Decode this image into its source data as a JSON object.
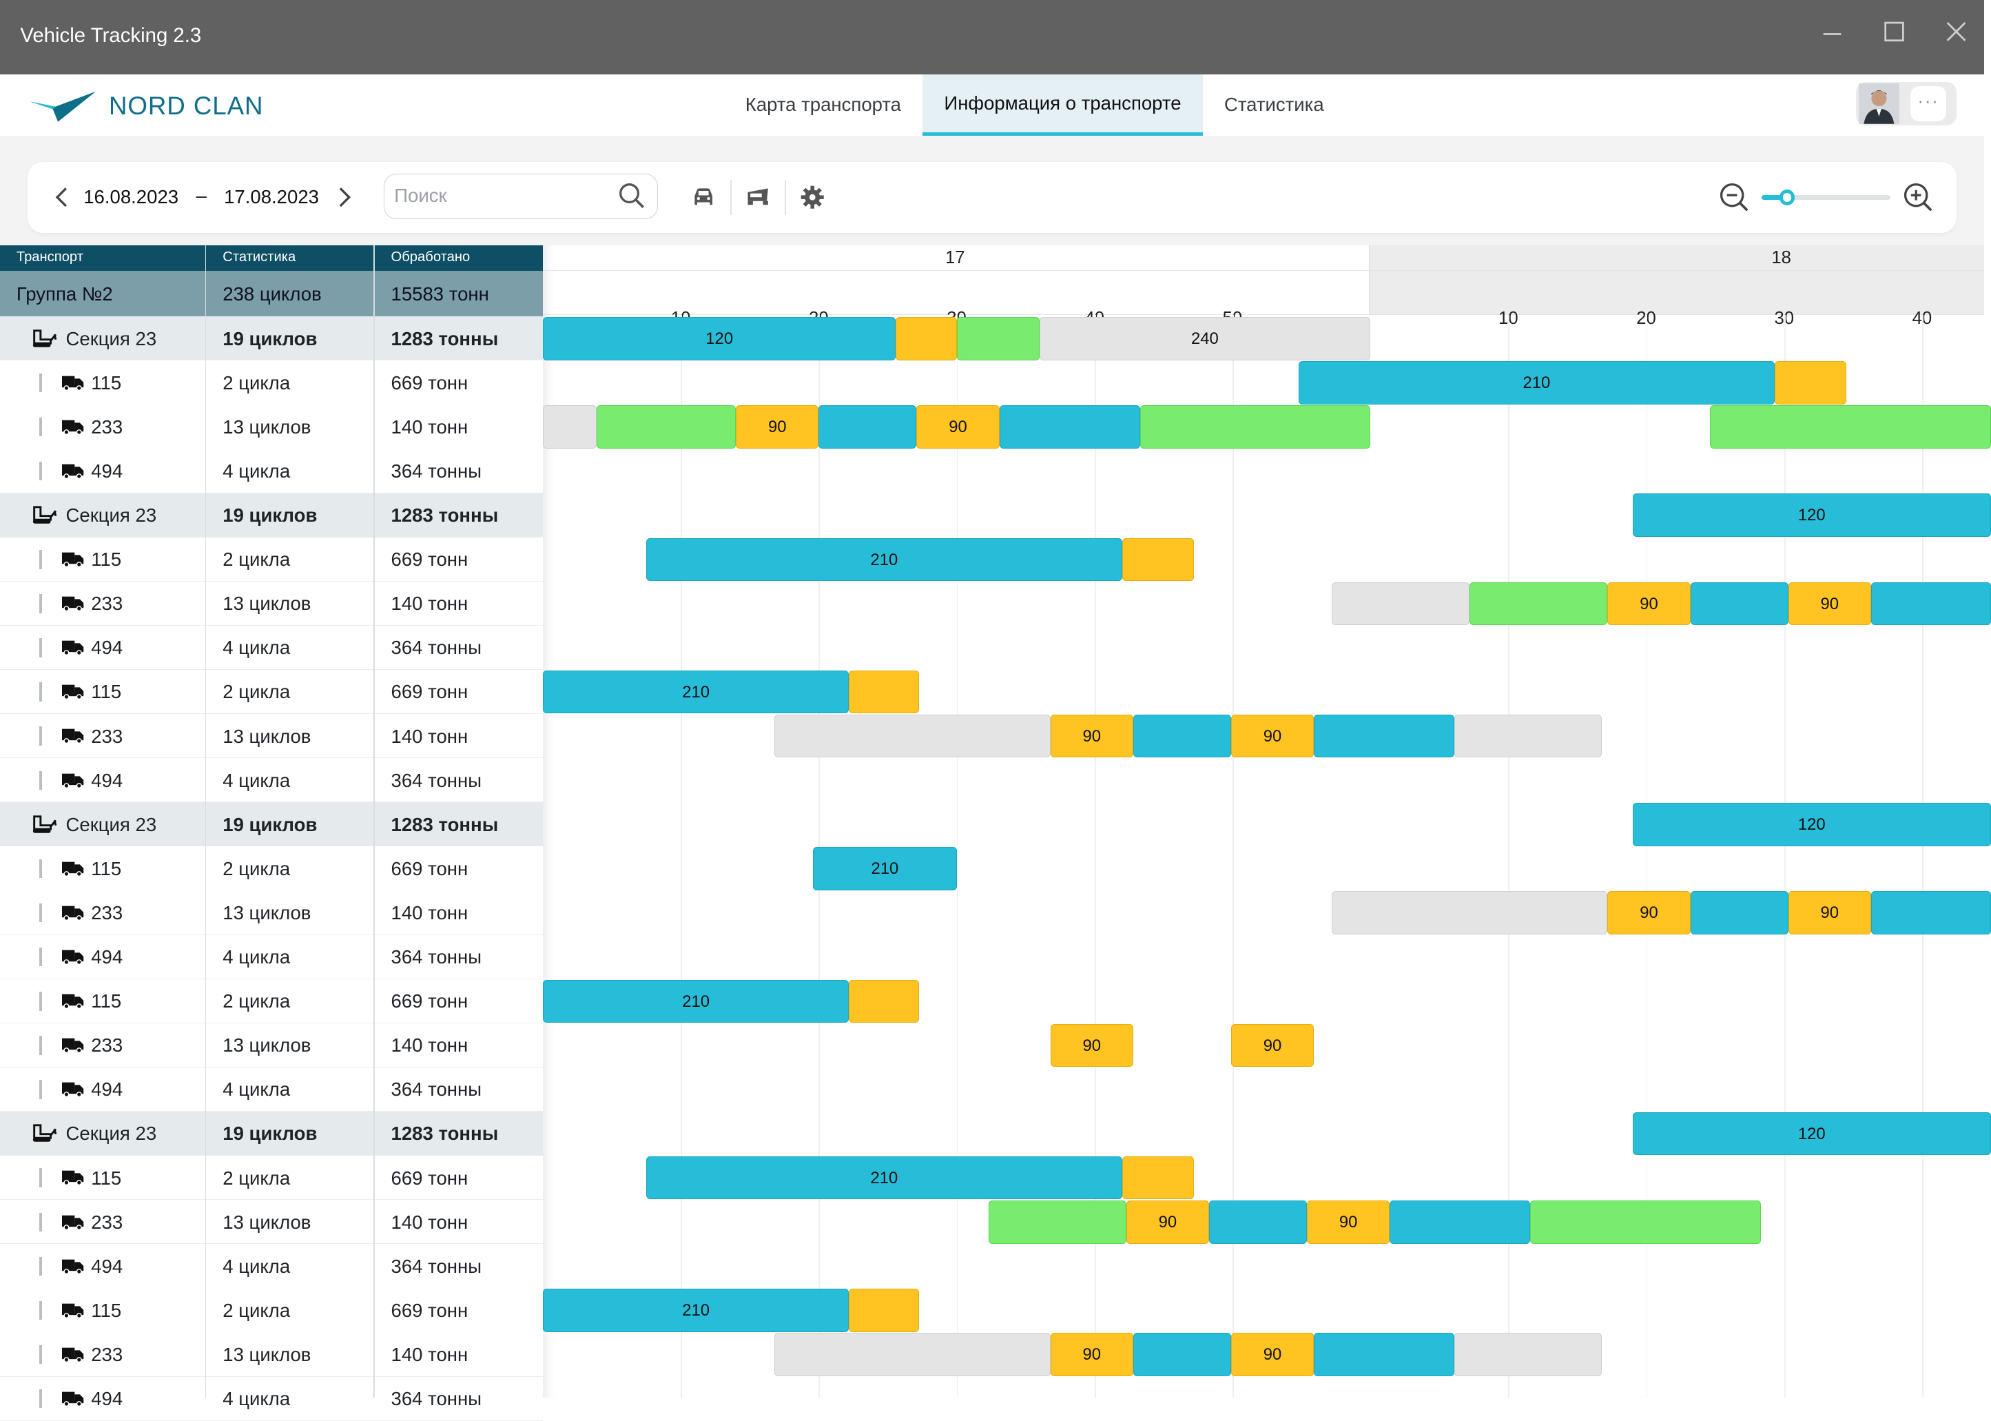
{
  "window": {
    "title": "Vehicle Tracking 2.3"
  },
  "header": {
    "logo_text": "NORD CLAN",
    "tabs": [
      {
        "label": "Карта транспорта",
        "active": false
      },
      {
        "label": "Информация о транспорте",
        "active": true
      },
      {
        "label": "Статистика",
        "active": false
      }
    ],
    "more_label": "···"
  },
  "toolbar": {
    "date_from": "16.08.2023",
    "date_separator": "–",
    "date_to": "17.08.2023",
    "search_placeholder": "Поиск",
    "search_value": "",
    "icons": [
      "car-icon",
      "truck-dump-icon",
      "gear-icon"
    ],
    "zoom_level": 0.2
  },
  "table": {
    "headers": [
      "Транспорт",
      "Статистика",
      "Обработано"
    ],
    "group": {
      "name": "Группа №2",
      "stats": "238 циклов",
      "processed": "15583 тонн"
    },
    "rows": [
      {
        "type": "section",
        "name": "Секция 23",
        "stats": "19 циклов",
        "processed": "1283 тонны"
      },
      {
        "type": "vehicle",
        "name": "115",
        "stats": "2 цикла",
        "processed": "669 тонн"
      },
      {
        "type": "vehicle",
        "name": "233",
        "stats": "13 циклов",
        "processed": "140 тонн"
      },
      {
        "type": "vehicle",
        "name": "494",
        "stats": "4 цикла",
        "processed": "364 тонны"
      },
      {
        "type": "section",
        "name": "Секция 23",
        "stats": "19 циклов",
        "processed": "1283 тонны"
      },
      {
        "type": "vehicle",
        "name": "115",
        "stats": "2 цикла",
        "processed": "669 тонн"
      },
      {
        "type": "vehicle",
        "name": "233",
        "stats": "13 циклов",
        "processed": "140 тонн"
      },
      {
        "type": "vehicle",
        "name": "494",
        "stats": "4 цикла",
        "processed": "364 тонны"
      },
      {
        "type": "vehicle",
        "name": "115",
        "stats": "2 цикла",
        "processed": "669 тонн"
      },
      {
        "type": "vehicle",
        "name": "233",
        "stats": "13 циклов",
        "processed": "140 тонн"
      },
      {
        "type": "vehicle",
        "name": "494",
        "stats": "4 цикла",
        "processed": "364 тонны"
      },
      {
        "type": "section",
        "name": "Секция 23",
        "stats": "19 циклов",
        "processed": "1283 тонны"
      },
      {
        "type": "vehicle",
        "name": "115",
        "stats": "2 цикла",
        "processed": "669 тонн"
      },
      {
        "type": "vehicle",
        "name": "233",
        "stats": "13 циклов",
        "processed": "140 тонн"
      },
      {
        "type": "vehicle",
        "name": "494",
        "stats": "4 цикла",
        "processed": "364 тонны"
      },
      {
        "type": "vehicle",
        "name": "115",
        "stats": "2 цикла",
        "processed": "669 тонн"
      },
      {
        "type": "vehicle",
        "name": "233",
        "stats": "13 циклов",
        "processed": "140 тонн"
      },
      {
        "type": "vehicle",
        "name": "494",
        "stats": "4 цикла",
        "processed": "364 тонны"
      },
      {
        "type": "section",
        "name": "Секция 23",
        "stats": "19 циклов",
        "processed": "1283 тонны"
      },
      {
        "type": "vehicle",
        "name": "115",
        "stats": "2 цикла",
        "processed": "669 тонн"
      },
      {
        "type": "vehicle",
        "name": "233",
        "stats": "13 циклов",
        "processed": "140 тонн"
      },
      {
        "type": "vehicle",
        "name": "494",
        "stats": "4 цикла",
        "processed": "364 тонны"
      },
      {
        "type": "vehicle",
        "name": "115",
        "stats": "2 цикла",
        "processed": "669 тонн"
      },
      {
        "type": "vehicle",
        "name": "233",
        "stats": "13 циклов",
        "processed": "140 тонн"
      },
      {
        "type": "vehicle",
        "name": "494",
        "stats": "4 цикла",
        "processed": "364 тонны"
      }
    ]
  },
  "timeline": {
    "colors": {
      "blue": "#27bcd8",
      "yellow": "#ffc322",
      "green": "#79ec6f",
      "gray": "#e4e4e4"
    },
    "days": [
      {
        "label": "17",
        "ticks": [
          "10",
          "20",
          "30",
          "40",
          "50"
        ]
      },
      {
        "label": "18",
        "ticks": [
          "10",
          "20",
          "30",
          "40"
        ]
      }
    ],
    "rows": [
      [
        {
          "c": "blue",
          "s": 0,
          "e": 25.6,
          "t": "120"
        },
        {
          "c": "yellow",
          "s": 25.6,
          "e": 30,
          "t": ""
        },
        {
          "c": "green",
          "s": 30,
          "e": 36,
          "t": ""
        },
        {
          "c": "gray",
          "s": 36,
          "e": 60,
          "t": "240"
        }
      ],
      [
        {
          "c": "blue",
          "s": 54.8,
          "e": 89.3,
          "t": "210"
        },
        {
          "c": "yellow",
          "s": 89.3,
          "e": 94.5,
          "t": ""
        }
      ],
      [
        {
          "c": "gray",
          "s": 0,
          "e": 3.9,
          "t": ""
        },
        {
          "c": "green",
          "s": 3.9,
          "e": 14,
          "t": ""
        },
        {
          "c": "yellow",
          "s": 14,
          "e": 20,
          "t": "90"
        },
        {
          "c": "blue",
          "s": 20,
          "e": 27.1,
          "t": ""
        },
        {
          "c": "yellow",
          "s": 27.1,
          "e": 33.1,
          "t": "90"
        },
        {
          "c": "blue",
          "s": 33.1,
          "e": 43.3,
          "t": ""
        },
        {
          "c": "green",
          "s": 43.3,
          "e": 60,
          "t": ""
        },
        {
          "c": "green",
          "s": 84.6,
          "e": 105,
          "t": ""
        }
      ],
      [],
      [
        {
          "c": "blue",
          "s": 79,
          "e": 105,
          "t": "120"
        }
      ],
      [
        {
          "c": "blue",
          "s": 7.5,
          "e": 42,
          "t": "210"
        },
        {
          "c": "yellow",
          "s": 42,
          "e": 47.2,
          "t": ""
        }
      ],
      [
        {
          "c": "gray",
          "s": 57.2,
          "e": 67.2,
          "t": ""
        },
        {
          "c": "green",
          "s": 67.2,
          "e": 77.2,
          "t": ""
        },
        {
          "c": "yellow",
          "s": 77.2,
          "e": 83.2,
          "t": "90"
        },
        {
          "c": "blue",
          "s": 83.2,
          "e": 90.3,
          "t": ""
        },
        {
          "c": "yellow",
          "s": 90.3,
          "e": 96.3,
          "t": "90"
        },
        {
          "c": "blue",
          "s": 96.3,
          "e": 105,
          "t": ""
        }
      ],
      [],
      [
        {
          "c": "blue",
          "s": 0,
          "e": 22.2,
          "t": "210"
        },
        {
          "c": "yellow",
          "s": 22.2,
          "e": 27.3,
          "t": ""
        }
      ],
      [
        {
          "c": "gray",
          "s": 16.8,
          "e": 36.8,
          "t": ""
        },
        {
          "c": "yellow",
          "s": 36.8,
          "e": 42.8,
          "t": "90"
        },
        {
          "c": "blue",
          "s": 42.8,
          "e": 49.9,
          "t": ""
        },
        {
          "c": "yellow",
          "s": 49.9,
          "e": 55.9,
          "t": "90"
        },
        {
          "c": "blue",
          "s": 55.9,
          "e": 66.1,
          "t": ""
        },
        {
          "c": "gray",
          "s": 66.1,
          "e": 76.8,
          "t": ""
        }
      ],
      [],
      [
        {
          "c": "blue",
          "s": 79,
          "e": 105,
          "t": "120"
        }
      ],
      [
        {
          "c": "blue",
          "s": 19.6,
          "e": 30,
          "t": "210"
        }
      ],
      [
        {
          "c": "gray",
          "s": 57.2,
          "e": 77.2,
          "t": ""
        },
        {
          "c": "yellow",
          "s": 77.2,
          "e": 83.2,
          "t": "90"
        },
        {
          "c": "blue",
          "s": 83.2,
          "e": 90.3,
          "t": ""
        },
        {
          "c": "yellow",
          "s": 90.3,
          "e": 96.3,
          "t": "90"
        },
        {
          "c": "blue",
          "s": 96.3,
          "e": 105,
          "t": ""
        }
      ],
      [],
      [
        {
          "c": "blue",
          "s": 0,
          "e": 22.2,
          "t": "210"
        },
        {
          "c": "yellow",
          "s": 22.2,
          "e": 27.3,
          "t": ""
        }
      ],
      [
        {
          "c": "yellow",
          "s": 36.8,
          "e": 42.8,
          "t": "90"
        },
        {
          "c": "yellow",
          "s": 49.9,
          "e": 55.9,
          "t": "90"
        }
      ],
      [],
      [
        {
          "c": "blue",
          "s": 79,
          "e": 105,
          "t": "120"
        }
      ],
      [
        {
          "c": "blue",
          "s": 7.5,
          "e": 42,
          "t": "210"
        },
        {
          "c": "yellow",
          "s": 42,
          "e": 47.2,
          "t": ""
        }
      ],
      [
        {
          "c": "green",
          "s": 32.3,
          "e": 42.3,
          "t": ""
        },
        {
          "c": "yellow",
          "s": 42.3,
          "e": 48.3,
          "t": "90"
        },
        {
          "c": "blue",
          "s": 48.3,
          "e": 55.4,
          "t": ""
        },
        {
          "c": "yellow",
          "s": 55.4,
          "e": 61.4,
          "t": "90"
        },
        {
          "c": "blue",
          "s": 61.4,
          "e": 71.6,
          "t": ""
        },
        {
          "c": "green",
          "s": 71.6,
          "e": 88.3,
          "t": ""
        }
      ],
      [],
      [
        {
          "c": "blue",
          "s": 0,
          "e": 22.2,
          "t": "210"
        },
        {
          "c": "yellow",
          "s": 22.2,
          "e": 27.3,
          "t": ""
        }
      ],
      [
        {
          "c": "gray",
          "s": 16.8,
          "e": 36.8,
          "t": ""
        },
        {
          "c": "yellow",
          "s": 36.8,
          "e": 42.8,
          "t": "90"
        },
        {
          "c": "blue",
          "s": 42.8,
          "e": 49.9,
          "t": ""
        },
        {
          "c": "yellow",
          "s": 49.9,
          "e": 55.9,
          "t": "90"
        },
        {
          "c": "blue",
          "s": 55.9,
          "e": 66.1,
          "t": ""
        },
        {
          "c": "gray",
          "s": 66.1,
          "e": 76.8,
          "t": ""
        }
      ],
      []
    ]
  }
}
